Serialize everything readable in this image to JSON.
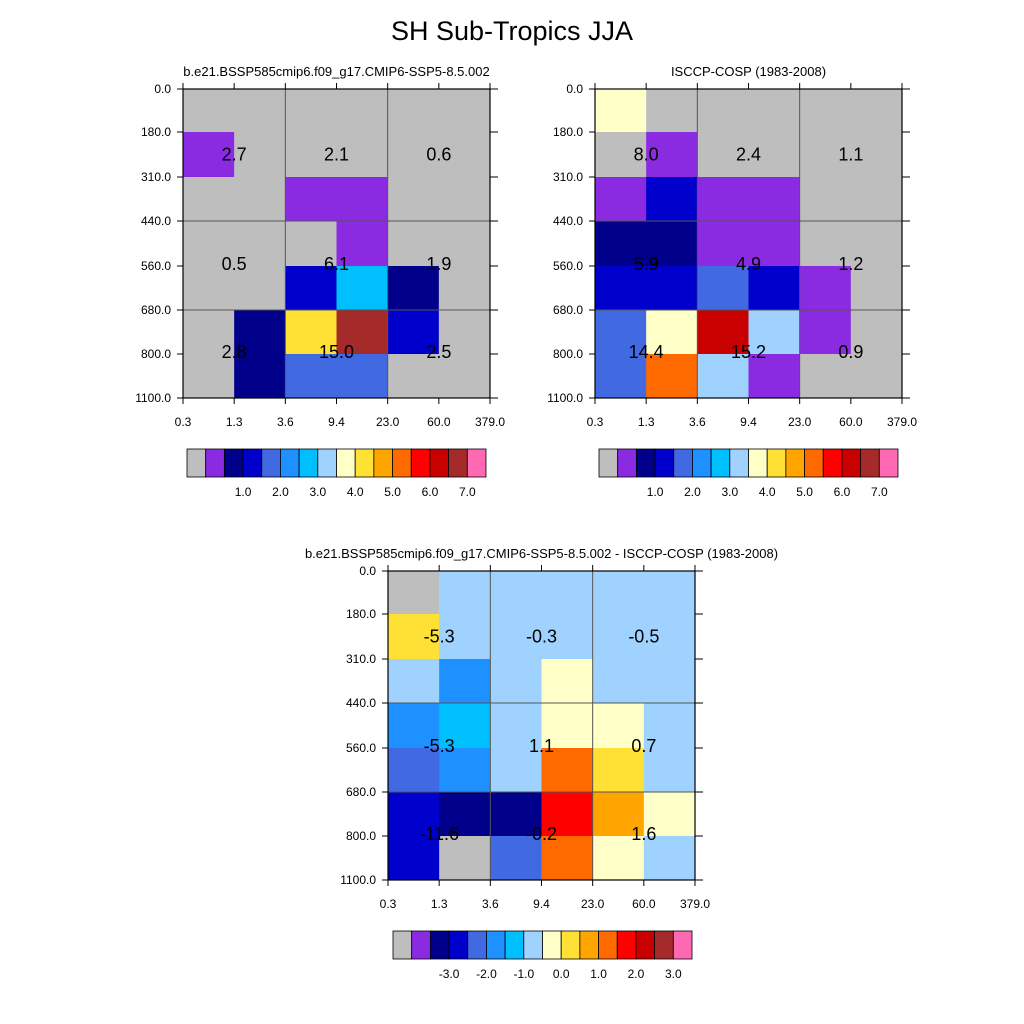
{
  "figure_title": "SH Sub-Tropics JJA",
  "chart_data": [
    {
      "type": "heatmap",
      "title": "b.e21.BSSP585cmip6.f09_g17.CMIP6-SSP5-8.5.002",
      "x_ticks": [
        "0.3",
        "1.3",
        "3.6",
        "9.4",
        "23.0",
        "60.0",
        "379.0"
      ],
      "y_ticks": [
        "0.0",
        "180.0",
        "310.0",
        "440.0",
        "560.0",
        "680.0",
        "800.0",
        "1100.0"
      ],
      "cell_classes": [
        [
          0,
          0,
          0,
          0,
          0,
          0
        ],
        [
          1,
          0,
          0,
          0,
          0,
          0
        ],
        [
          0,
          0,
          1,
          1,
          0,
          0
        ],
        [
          0,
          0,
          0,
          1,
          0,
          0
        ],
        [
          0,
          0,
          3,
          6,
          2,
          0
        ],
        [
          0,
          2,
          9,
          14,
          3,
          0
        ],
        [
          0,
          2,
          4,
          4,
          0,
          0
        ]
      ],
      "block_values": [
        [
          "2.7",
          "2.1",
          "0.6"
        ],
        [
          "0.5",
          "6.1",
          "1.9"
        ],
        [
          "2.8",
          "15.0",
          "2.5"
        ]
      ],
      "colorbar_labels": [
        "1.0",
        "2.0",
        "3.0",
        "4.0",
        "5.0",
        "6.0",
        "7.0"
      ]
    },
    {
      "type": "heatmap",
      "title": "ISCCP-COSP (1983-2008)",
      "x_ticks": [
        "0.3",
        "1.3",
        "3.6",
        "9.4",
        "23.0",
        "60.0",
        "379.0"
      ],
      "y_ticks": [
        "0.0",
        "180.0",
        "310.0",
        "440.0",
        "560.0",
        "680.0",
        "800.0",
        "1100.0"
      ],
      "cell_classes": [
        [
          8,
          0,
          0,
          0,
          0,
          0
        ],
        [
          0,
          1,
          0,
          0,
          0,
          0
        ],
        [
          1,
          3,
          1,
          1,
          0,
          0
        ],
        [
          2,
          2,
          1,
          1,
          0,
          0
        ],
        [
          3,
          3,
          4,
          3,
          1,
          0
        ],
        [
          4,
          8,
          13,
          7,
          1,
          0
        ],
        [
          4,
          11,
          7,
          1,
          0,
          0
        ]
      ],
      "block_values": [
        [
          "8.0",
          "2.4",
          "1.1"
        ],
        [
          "5.9",
          "4.9",
          "1.2"
        ],
        [
          "14.4",
          "15.2",
          "0.9"
        ]
      ],
      "colorbar_labels": [
        "1.0",
        "2.0",
        "3.0",
        "4.0",
        "5.0",
        "6.0",
        "7.0"
      ]
    },
    {
      "type": "heatmap",
      "title": "b.e21.BSSP585cmip6.f09_g17.CMIP6-SSP5-8.5.002 - ISCCP-COSP (1983-2008)",
      "x_ticks": [
        "0.3",
        "1.3",
        "3.6",
        "9.4",
        "23.0",
        "60.0",
        "379.0"
      ],
      "y_ticks": [
        "0.0",
        "180.0",
        "310.0",
        "440.0",
        "560.0",
        "680.0",
        "800.0",
        "1100.0"
      ],
      "cell_classes": [
        [
          0,
          7,
          7,
          7,
          7,
          7
        ],
        [
          9,
          7,
          7,
          7,
          7,
          7
        ],
        [
          7,
          5,
          7,
          8,
          7,
          7
        ],
        [
          5,
          6,
          7,
          8,
          8,
          7
        ],
        [
          4,
          5,
          7,
          11,
          9,
          7
        ],
        [
          3,
          2,
          2,
          12,
          10,
          8
        ],
        [
          3,
          0,
          4,
          11,
          8,
          7
        ]
      ],
      "block_values": [
        [
          "-5.3",
          "-0.3",
          "-0.5"
        ],
        [
          "-5.3",
          "1.1",
          "0.7"
        ],
        [
          "-11.6",
          "-0.2",
          "1.6"
        ]
      ],
      "colorbar_labels": [
        "-3.0",
        "-2.0",
        "-1.0",
        "0.0",
        "1.0",
        "2.0",
        "3.0"
      ]
    }
  ],
  "palettes": {
    "field": [
      "#bebebe",
      "#8a2be2",
      "#00008b",
      "#0000cd",
      "#4169e1",
      "#1e90ff",
      "#00bfff",
      "#a0d2ff",
      "#ffffc8",
      "#ffe135",
      "#ffa500",
      "#ff6a00",
      "#ff0000",
      "#c80000",
      "#a52a2a",
      "#ff69b4"
    ],
    "diff": [
      "#bebebe",
      "#8a2be2",
      "#00008b",
      "#0000cd",
      "#4169e1",
      "#1e90ff",
      "#00bfff",
      "#a0d2ff",
      "#ffffc8",
      "#ffe135",
      "#ffa500",
      "#ff6a00",
      "#ff0000",
      "#c80000",
      "#a52a2a",
      "#ff69b4"
    ]
  }
}
